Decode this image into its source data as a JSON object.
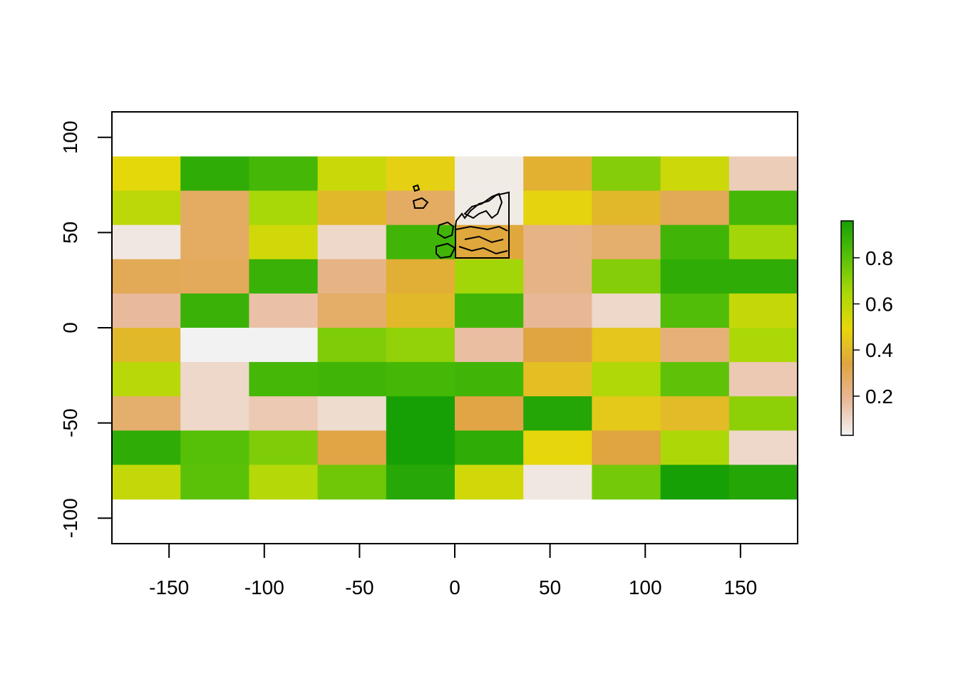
{
  "chart_data": {
    "type": "heatmap",
    "title": "",
    "xlabel": "",
    "ylabel": "",
    "xlim": [
      -180,
      180
    ],
    "ylim": [
      -113.4,
      113.4
    ],
    "extent": {
      "xmin": -180,
      "xmax": 180,
      "ymin": -90,
      "ymax": 90
    },
    "ncol": 10,
    "nrow": 10,
    "x_ticks": [
      -150,
      -100,
      -50,
      0,
      50,
      100,
      150
    ],
    "y_ticks": [
      -100,
      -50,
      0,
      50,
      100
    ],
    "legend": {
      "position": "right",
      "ticks": [
        0.2,
        0.4,
        0.6,
        0.8
      ],
      "range": [
        0.03,
        0.96
      ]
    },
    "color_ramp": [
      "#f2f2f2",
      "#e8b898",
      "#e0a440",
      "#e6d80a",
      "#a8d808",
      "#58c008",
      "#17a005"
    ],
    "values": [
      [
        0.5,
        0.9,
        0.85,
        0.57,
        0.47,
        0.05,
        0.38,
        0.72,
        0.56,
        0.13
      ],
      [
        0.6,
        0.28,
        0.65,
        0.4,
        0.28,
        0.05,
        0.48,
        0.4,
        0.3,
        0.85
      ],
      [
        0.06,
        0.28,
        0.55,
        0.1,
        0.86,
        0.35,
        0.22,
        0.26,
        0.86,
        0.66
      ],
      [
        0.3,
        0.29,
        0.88,
        0.22,
        0.37,
        0.66,
        0.22,
        0.72,
        0.9,
        0.9
      ],
      [
        0.18,
        0.88,
        0.16,
        0.27,
        0.4,
        0.86,
        0.19,
        0.1,
        0.82,
        0.58
      ],
      [
        0.4,
        0.03,
        0.03,
        0.73,
        0.69,
        0.17,
        0.34,
        0.44,
        0.24,
        0.64
      ],
      [
        0.61,
        0.1,
        0.85,
        0.86,
        0.85,
        0.86,
        0.42,
        0.63,
        0.79,
        0.14
      ],
      [
        0.26,
        0.1,
        0.14,
        0.09,
        0.96,
        0.33,
        0.93,
        0.45,
        0.41,
        0.7
      ],
      [
        0.9,
        0.81,
        0.73,
        0.33,
        0.96,
        0.9,
        0.49,
        0.34,
        0.64,
        0.1
      ],
      [
        0.58,
        0.8,
        0.62,
        0.76,
        0.92,
        0.55,
        0.06,
        0.75,
        0.96,
        0.93
      ]
    ]
  }
}
